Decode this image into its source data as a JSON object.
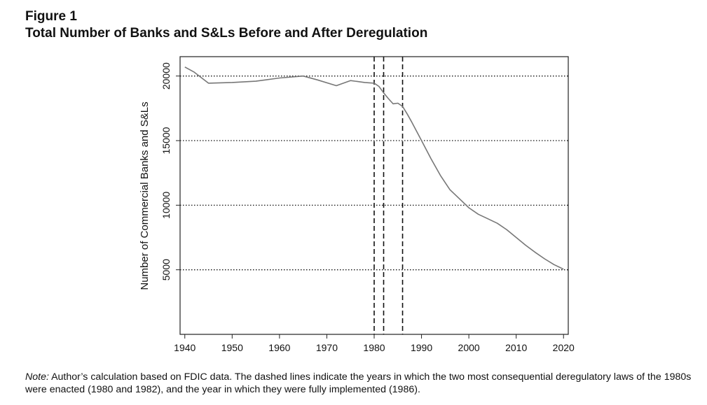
{
  "figure": {
    "label": "Figure 1",
    "title": "Total Number of Banks and S&Ls Before and After Deregulation"
  },
  "note": {
    "label": "Note:",
    "text": " Author’s calculation based on FDIC data. The dashed lines indicate the years in which the two most consequential deregulatory laws of the 1980s were enacted (1980 and 1982), and the year in which they were fully implemented (1986)."
  },
  "chart_data": {
    "type": "line",
    "title": "",
    "xlabel": "",
    "ylabel": "Number of Commercial Banks and S&Ls",
    "xlim": [
      1939,
      2021
    ],
    "ylim": [
      0,
      21500
    ],
    "x_ticks": [
      1940,
      1950,
      1960,
      1970,
      1980,
      1990,
      2000,
      2010,
      2020
    ],
    "y_ticks": [
      5000,
      10000,
      15000,
      20000
    ],
    "y_gridlines": [
      5000,
      10000,
      15000,
      20000
    ],
    "grid_style": "dotted horizontal",
    "vertical_markers": [
      1980,
      1982,
      1986
    ],
    "vertical_marker_style": "dashed",
    "line_color": "#777777",
    "series": [
      {
        "x": [
          1940,
          1942,
          1945,
          1950,
          1955,
          1960,
          1965,
          1968,
          1972,
          1975,
          1978,
          1980,
          1981,
          1982,
          1983,
          1984,
          1985,
          1986,
          1987,
          1988,
          1989,
          1990,
          1992,
          1994,
          1996,
          1998,
          2000,
          2002,
          2004,
          2006,
          2008,
          2010,
          2012,
          2014,
          2016,
          2018,
          2020
        ],
        "y": [
          20700,
          20300,
          19450,
          19500,
          19600,
          19850,
          20000,
          19700,
          19250,
          19650,
          19500,
          19450,
          19200,
          18700,
          18250,
          17850,
          17900,
          17650,
          17050,
          16400,
          15700,
          15000,
          13600,
          12300,
          11200,
          10500,
          9800,
          9300,
          8950,
          8600,
          8100,
          7500,
          6900,
          6350,
          5850,
          5400,
          5050
        ]
      }
    ]
  }
}
